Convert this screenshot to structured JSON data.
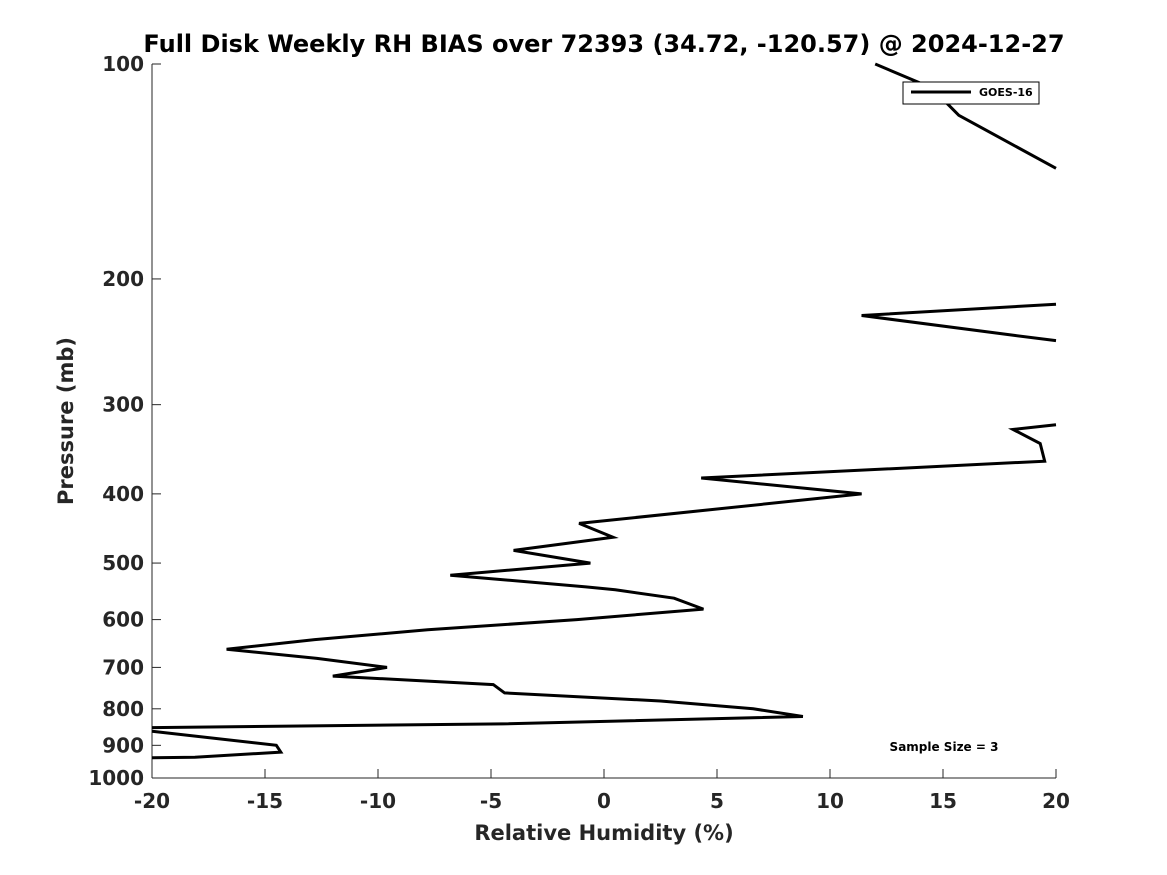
{
  "chart_data": {
    "type": "line",
    "title": "Full Disk Weekly RH BIAS over 72393 (34.72, -120.57) @ 2024-12-27",
    "xlabel": "Relative Humidity (%)",
    "ylabel": "Pressure (mb)",
    "xlim": [
      -20,
      20
    ],
    "ylim": [
      100,
      1000
    ],
    "y_scale": "log",
    "y_reversed": true,
    "grid": false,
    "legend_position": "top-right",
    "x_ticks": [
      "-20",
      "-15",
      "-10",
      "-5",
      "0",
      "5",
      "10",
      "15",
      "20"
    ],
    "x_tick_values": [
      -20,
      -15,
      -10,
      -5,
      0,
      5,
      10,
      15,
      20
    ],
    "y_ticks": [
      "100",
      "200",
      "300",
      "400",
      "500",
      "600",
      "700",
      "800",
      "900",
      "1000"
    ],
    "y_tick_values": [
      100,
      200,
      300,
      400,
      500,
      600,
      700,
      800,
      900,
      1000
    ],
    "annotation": "Sample Size = 3",
    "series": [
      {
        "name": "GOES-16",
        "color": "#000000",
        "segments": [
          [
            [
              12.0,
              100
            ],
            [
              14.5,
              108
            ],
            [
              15.7,
              118
            ],
            [
              20.0,
              140
            ]
          ],
          [
            [
              20.0,
              217
            ],
            [
              11.4,
              225
            ],
            [
              18.2,
              240
            ],
            [
              20.0,
              244
            ]
          ],
          [
            [
              20.0,
              320
            ],
            [
              18.1,
              325
            ],
            [
              19.3,
              340
            ],
            [
              19.5,
              360
            ],
            [
              4.3,
              380
            ],
            [
              11.4,
              400
            ],
            [
              -1.1,
              440
            ],
            [
              0.4,
              460
            ],
            [
              -4.0,
              480
            ],
            [
              -0.6,
              500
            ],
            [
              -6.8,
              520
            ],
            [
              -0.8,
              540
            ],
            [
              0.5,
              545
            ],
            [
              3.1,
              560
            ],
            [
              4.4,
              580
            ],
            [
              -1.2,
              600
            ],
            [
              -7.8,
              620
            ],
            [
              -12.8,
              640
            ],
            [
              -16.7,
              660
            ],
            [
              -12.7,
              680
            ],
            [
              -9.6,
              700
            ],
            [
              -12.0,
              720
            ],
            [
              -4.9,
              740
            ],
            [
              -4.4,
              760
            ],
            [
              2.5,
              780
            ],
            [
              6.6,
              800
            ],
            [
              8.8,
              820
            ],
            [
              -4.5,
              840
            ],
            [
              -20.0,
              850
            ]
          ],
          [
            [
              -20.0,
              860
            ],
            [
              -14.5,
              900
            ],
            [
              -14.3,
              920
            ],
            [
              -18.1,
              935
            ],
            [
              -20.0,
              937
            ]
          ]
        ]
      }
    ]
  }
}
